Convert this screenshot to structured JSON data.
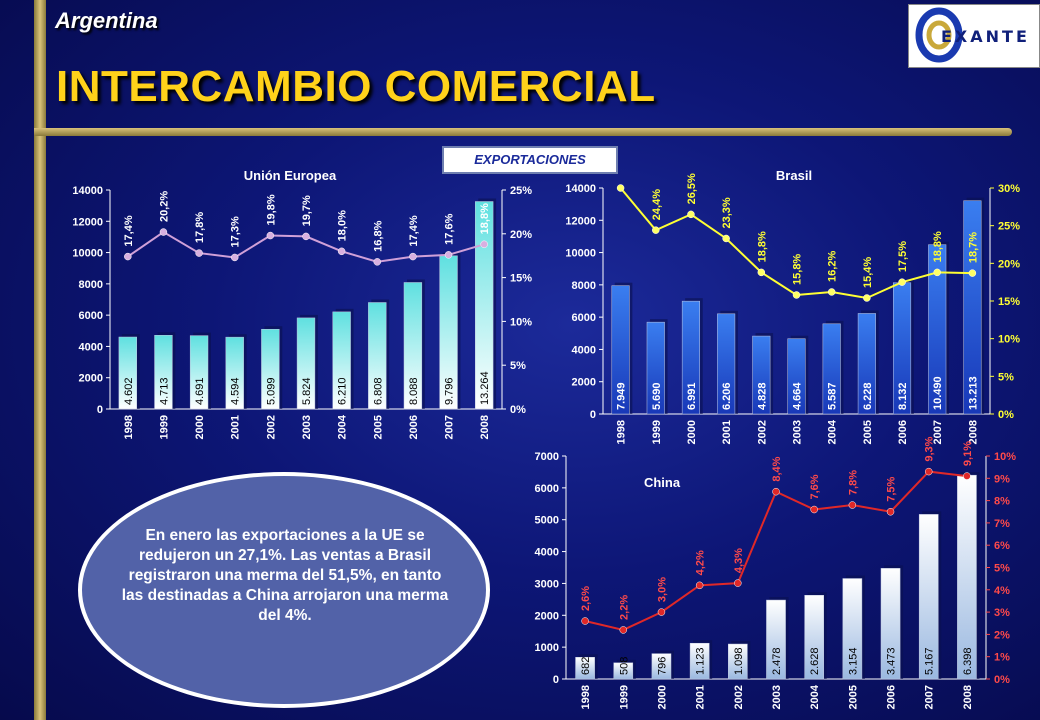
{
  "header": {
    "country": "Argentina",
    "title": "INTERCAMBIO COMERCIAL",
    "logo_text": "EXANTE"
  },
  "badge": "EXPORTACIONES",
  "callout": "En enero las exportaciones a la UE se redujeron un 27,1%. Las ventas a Brasil registraron una merma del 51,5%, en tanto las destinadas a China arrojaron una merma del 4%.",
  "chart_data": [
    {
      "type": "bar",
      "title": "Unión Europea",
      "categories": [
        "1998",
        "1999",
        "2000",
        "2001",
        "2002",
        "2003",
        "2004",
        "2005",
        "2006",
        "2007",
        "2008"
      ],
      "series": [
        {
          "values": [
            4602,
            4713,
            4691,
            4594,
            5099,
            5824,
            6210,
            6808,
            8088,
            9796,
            13264
          ],
          "labels": [
            "4.602",
            "4.713",
            "4.691",
            "4.594",
            "5.099",
            "5.824",
            "6.210",
            "6.808",
            "8.088",
            "9.796",
            "13.264"
          ]
        },
        {
          "values": [
            17.4,
            20.2,
            17.8,
            17.3,
            19.8,
            19.7,
            18.0,
            16.8,
            17.4,
            17.6,
            18.8
          ],
          "labels": [
            "17,4%",
            "20,2%",
            "17,8%",
            "17,3%",
            "19,8%",
            "19,7%",
            "18,0%",
            "16,8%",
            "17,4%",
            "17,6%",
            "18,8%"
          ],
          "axis": "right"
        }
      ],
      "ylim": [
        0,
        14000
      ],
      "yticks": [
        "0",
        "2000",
        "4000",
        "6000",
        "8000",
        "10000",
        "12000",
        "14000"
      ],
      "y2lim": [
        0,
        25
      ],
      "y2ticks": [
        "0%",
        "5%",
        "10%",
        "15%",
        "20%",
        "25%"
      ],
      "colors": {
        "bar": "#4fc8c8",
        "line": "#d0a0d8"
      }
    },
    {
      "type": "bar",
      "title": "Brasil",
      "categories": [
        "1998",
        "1999",
        "2000",
        "2001",
        "2002",
        "2003",
        "2004",
        "2005",
        "2006",
        "2007",
        "2008"
      ],
      "series": [
        {
          "values": [
            7949,
            5690,
            6991,
            6206,
            4828,
            4664,
            5587,
            6228,
            8132,
            10490,
            13213
          ],
          "labels": [
            "7.949",
            "5.690",
            "6.991",
            "6.206",
            "4.828",
            "4.664",
            "5.587",
            "6.228",
            "8.132",
            "10.490",
            "13.213"
          ]
        },
        {
          "values": [
            30,
            24.4,
            26.5,
            23.3,
            18.8,
            15.8,
            16.2,
            15.4,
            17.5,
            18.8,
            18.7
          ],
          "labels": [
            "",
            "24,4%",
            "26,5%",
            "23,3%",
            "18,8%",
            "15,8%",
            "16,2%",
            "15,4%",
            "17,5%",
            "18,8%",
            "18,7%"
          ],
          "axis": "right"
        }
      ],
      "ylim": [
        0,
        14000
      ],
      "yticks": [
        "0",
        "2000",
        "4000",
        "6000",
        "8000",
        "10000",
        "12000",
        "14000"
      ],
      "y2lim": [
        0,
        30
      ],
      "y2ticks": [
        "0%",
        "5%",
        "10%",
        "15%",
        "20%",
        "25%",
        "30%"
      ],
      "colors": {
        "bar": "#2a66e0",
        "line": "#ffff33"
      }
    },
    {
      "type": "bar",
      "title": "China",
      "categories": [
        "1998",
        "1999",
        "2000",
        "2001",
        "2002",
        "2003",
        "2004",
        "2005",
        "2006",
        "2007",
        "2008"
      ],
      "series": [
        {
          "values": [
            682,
            508,
            796,
            1123,
            1098,
            2478,
            2628,
            3154,
            3473,
            5167,
            6398
          ],
          "labels": [
            "682",
            "508",
            "796",
            "1.123",
            "1.098",
            "2.478",
            "2.628",
            "3.154",
            "3.473",
            "5.167",
            "6.398"
          ]
        },
        {
          "values": [
            2.6,
            2.2,
            3.0,
            4.2,
            4.3,
            8.4,
            7.6,
            7.8,
            7.5,
            9.3,
            9.1
          ],
          "labels": [
            "2,6%",
            "2,2%",
            "3,0%",
            "4,2%",
            "4,3%",
            "8,4%",
            "7,6%",
            "7,8%",
            "7,5%",
            "9,3%",
            "9,1%"
          ],
          "axis": "right"
        }
      ],
      "ylim": [
        0,
        7000
      ],
      "yticks": [
        "0",
        "1000",
        "2000",
        "3000",
        "4000",
        "5000",
        "6000",
        "7000"
      ],
      "y2lim": [
        0,
        10
      ],
      "y2ticks": [
        "0%",
        "1%",
        "2%",
        "3%",
        "4%",
        "5%",
        "6%",
        "7%",
        "8%",
        "9%",
        "10%"
      ],
      "colors": {
        "bar": "#b8cce8",
        "line": "#e02828"
      }
    }
  ]
}
